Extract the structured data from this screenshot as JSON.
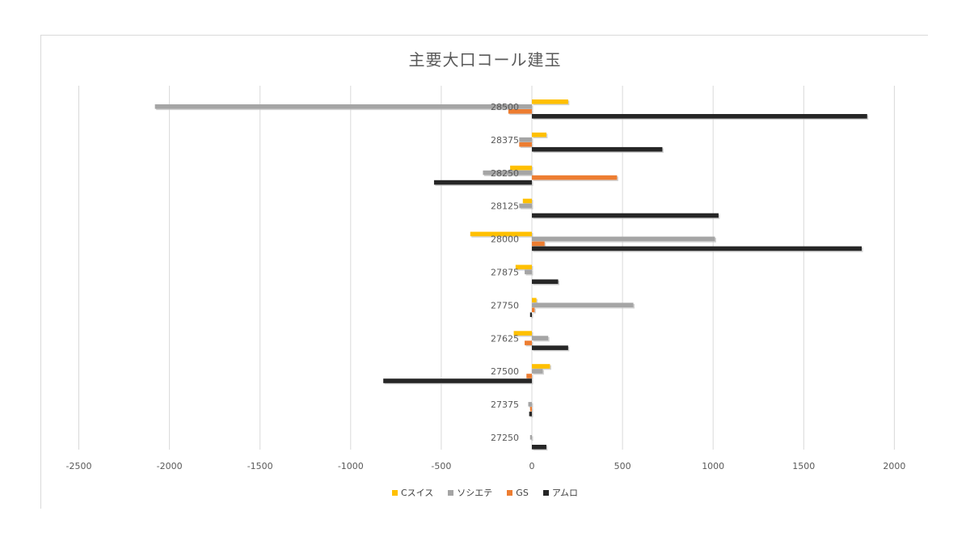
{
  "chart_data": {
    "type": "bar",
    "orientation": "horizontal",
    "title": "主要大口コール建玉",
    "categories": [
      "28500",
      "28375",
      "28250",
      "28125",
      "28000",
      "27875",
      "27750",
      "27625",
      "27500",
      "27375",
      "27250"
    ],
    "series": [
      {
        "name": "Cスイス",
        "color": "#ffc000",
        "values": [
          200,
          80,
          -120,
          -50,
          -340,
          -90,
          25,
          -100,
          100,
          0,
          0
        ]
      },
      {
        "name": "ソシエテ",
        "color": "#a5a5a5",
        "values": [
          -2080,
          -70,
          -270,
          -70,
          1010,
          -40,
          560,
          90,
          60,
          -20,
          -10
        ]
      },
      {
        "name": "GS",
        "color": "#ed7d31",
        "values": [
          -130,
          -70,
          470,
          0,
          70,
          0,
          15,
          -40,
          -30,
          -10,
          0
        ]
      },
      {
        "name": "アムロ",
        "color": "#262626",
        "values": [
          1850,
          720,
          -540,
          1030,
          1820,
          145,
          -10,
          200,
          -820,
          -15,
          80
        ]
      }
    ],
    "xlim": [
      -2500,
      2000
    ],
    "xticks": [
      -2500,
      -2000,
      -1500,
      -1000,
      -500,
      0,
      500,
      1000,
      1500,
      2000
    ],
    "grid": true,
    "legend_position": "bottom"
  }
}
